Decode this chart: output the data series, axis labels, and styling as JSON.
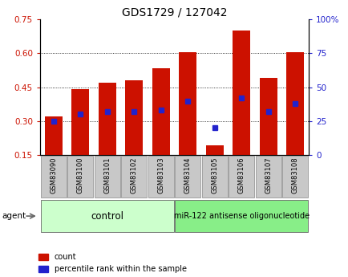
{
  "title": "GDS1729 / 127042",
  "categories": [
    "GSM83090",
    "GSM83100",
    "GSM83101",
    "GSM83102",
    "GSM83103",
    "GSM83104",
    "GSM83105",
    "GSM83106",
    "GSM83107",
    "GSM83108"
  ],
  "count_values": [
    0.32,
    0.44,
    0.47,
    0.48,
    0.535,
    0.605,
    0.195,
    0.7,
    0.49,
    0.605
  ],
  "percentile_values": [
    25,
    30,
    32,
    32,
    33,
    40,
    20,
    42,
    32,
    38
  ],
  "bar_color": "#CC1100",
  "percentile_color": "#2222CC",
  "bar_bottom": 0.15,
  "ylim_left": [
    0.15,
    0.75
  ],
  "ylim_right": [
    0,
    100
  ],
  "yticks_left": [
    0.15,
    0.3,
    0.45,
    0.6,
    0.75
  ],
  "yticks_right": [
    0,
    25,
    50,
    75,
    100
  ],
  "ytick_labels_left": [
    "0.15",
    "0.30",
    "0.45",
    "0.60",
    "0.75"
  ],
  "ytick_labels_right": [
    "0",
    "25",
    "50",
    "75",
    "100%"
  ],
  "grid_lines": [
    0.3,
    0.45,
    0.6
  ],
  "control_label": "control",
  "treatment_label": "miR-122 antisense oligonucleotide",
  "agent_label": "agent",
  "legend_count_label": "count",
  "legend_percentile_label": "percentile rank within the sample",
  "tick_color_left": "#CC1100",
  "tick_color_right": "#2222CC",
  "bg_color_xticklabels": "#c8c8c8",
  "bg_color_control": "#ccffcc",
  "bg_color_treatment": "#88ee88",
  "bar_width": 0.65,
  "percentile_marker_size": 5,
  "n_control": 5,
  "n_treatment": 5
}
